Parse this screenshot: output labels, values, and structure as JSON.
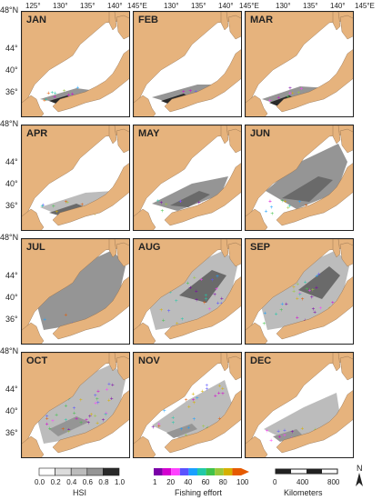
{
  "axes": {
    "lon_ticks": [
      "125°",
      "130°",
      "135°",
      "140°",
      "145°E"
    ],
    "lat_ticks": [
      "48°N",
      "44°",
      "40°",
      "36°"
    ]
  },
  "months": [
    "JAN",
    "FEB",
    "MAR",
    "APR",
    "MAY",
    "JUN",
    "JUL",
    "AUG",
    "SEP",
    "OCT",
    "NOV",
    "DEC"
  ],
  "colors": {
    "land": "#e6b37d",
    "sea": "#ffffff",
    "hsi": [
      "#ffffff",
      "#dcdcdc",
      "#bcbcbc",
      "#959595",
      "#6a6a6a",
      "#2a2a2a"
    ],
    "effort": [
      "#7a00a8",
      "#d400d0",
      "#ff40ff",
      "#5a52ff",
      "#1aa0ff",
      "#21c9a8",
      "#41c24a",
      "#9ac83a",
      "#d6b000",
      "#e65a00"
    ]
  },
  "legends": {
    "hsi": {
      "title": "HSI",
      "ticks": [
        "0.0",
        "0.2",
        "0.4",
        "0.6",
        "0.8",
        "1.0"
      ]
    },
    "effort": {
      "title": "Fishing effort",
      "ticks": [
        "1",
        "20",
        "40",
        "60",
        "80",
        "100"
      ]
    },
    "scale": {
      "title": "Kilometers",
      "ticks": [
        "0",
        "400",
        "800"
      ],
      "north": "N"
    }
  }
}
